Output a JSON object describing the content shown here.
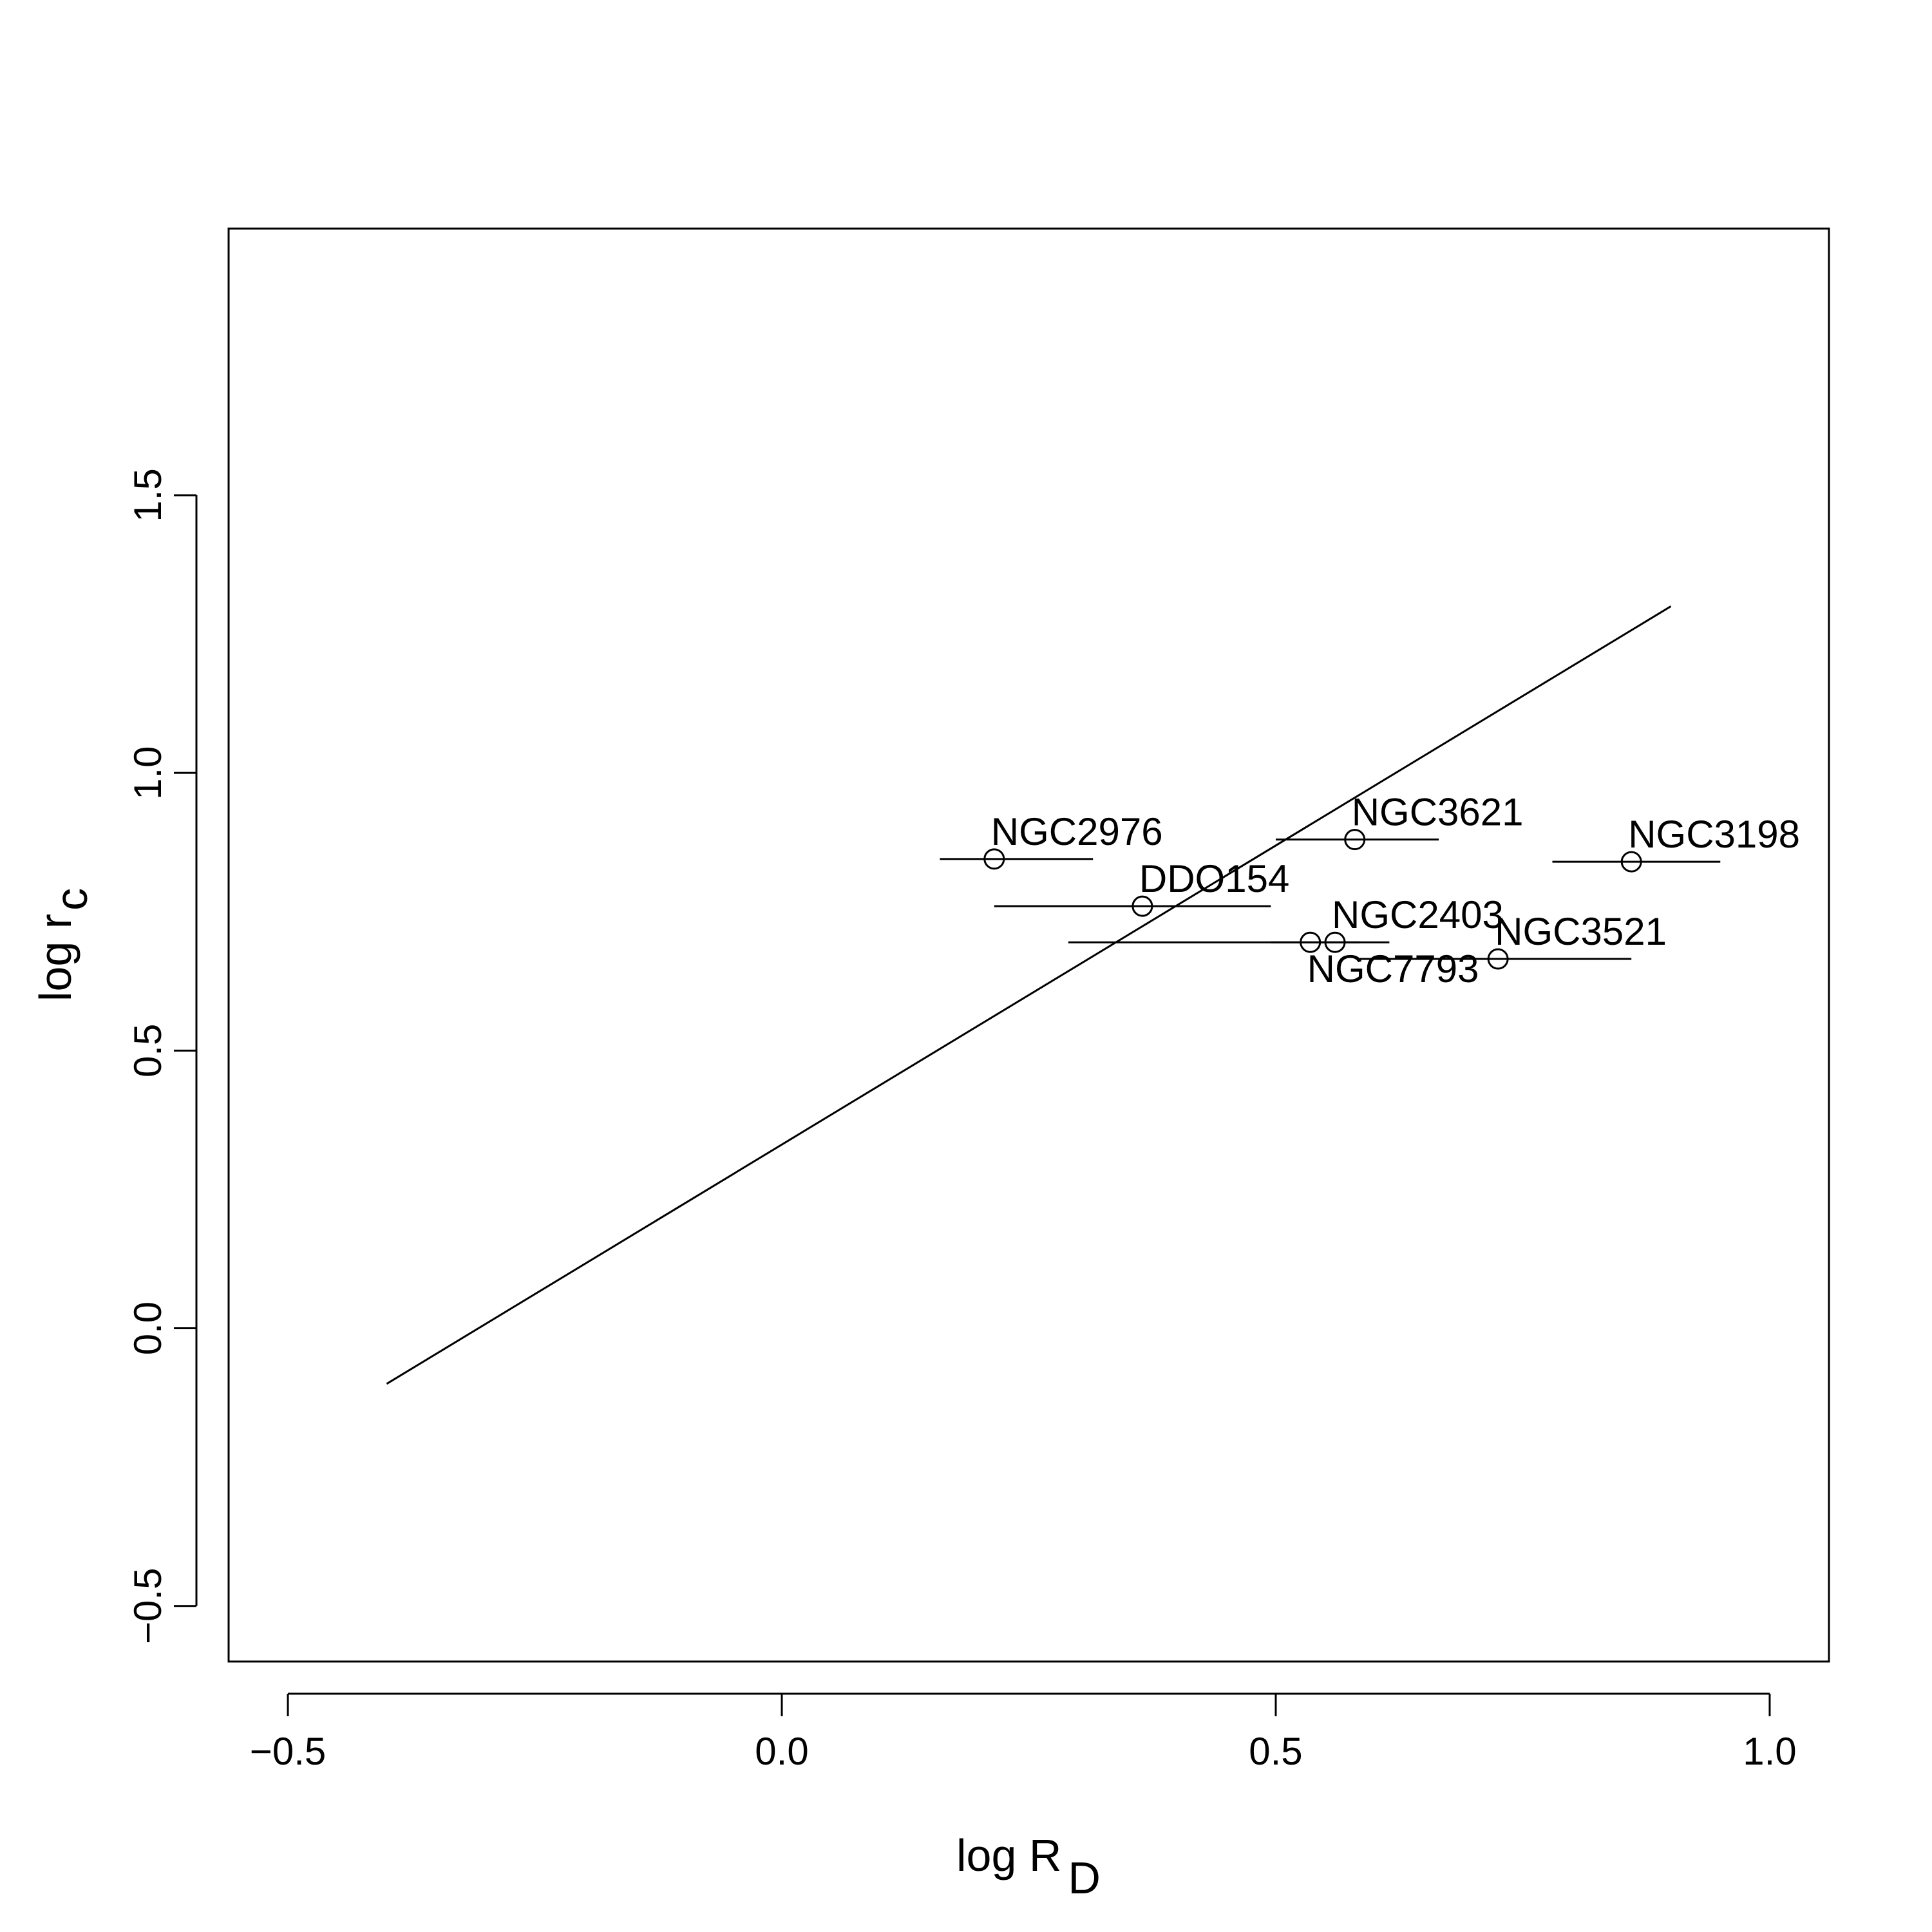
{
  "chart_data": {
    "type": "scatter",
    "title": "",
    "xlabel": "log R",
    "xlabel_sub": "D",
    "ylabel": "log r",
    "ylabel_sub": "c",
    "xlim": [
      -0.56,
      1.06
    ],
    "ylim": [
      -0.6,
      1.98
    ],
    "x_ticks": [
      -0.5,
      0.0,
      0.5,
      1.0
    ],
    "x_tick_labels": [
      "−0.5",
      "0.0",
      "0.5",
      "1.0"
    ],
    "y_ticks": [
      -0.5,
      0.0,
      0.5,
      1.0,
      1.5
    ],
    "y_tick_labels": [
      "−0.5",
      "0.0",
      "0.5",
      "1.0",
      "1.5"
    ],
    "grid": false,
    "points": [
      {
        "label": "NGC2976",
        "x": 0.215,
        "y": 0.845,
        "xerr_low": 0.16,
        "xerr_high": 0.315,
        "label_pos": "above-right"
      },
      {
        "label": "DDO154",
        "x": 0.365,
        "y": 0.76,
        "xerr_low": 0.215,
        "xerr_high": 0.495,
        "label_pos": "above-right"
      },
      {
        "label": "NGC3621",
        "x": 0.58,
        "y": 0.88,
        "xerr_low": 0.5,
        "xerr_high": 0.665,
        "label_pos": "above-right"
      },
      {
        "label": "NGC3198",
        "x": 0.86,
        "y": 0.84,
        "xerr_low": 0.78,
        "xerr_high": 0.95,
        "label_pos": "above-right"
      },
      {
        "label": "NGC2403",
        "x": 0.56,
        "y": 0.695,
        "xerr_low": 0.29,
        "xerr_high": 0.615,
        "label_pos": "above-right"
      },
      {
        "label": "NGC7793",
        "x": 0.535,
        "y": 0.695,
        "xerr_low": 0.495,
        "xerr_high": 0.585,
        "label_pos": "below-right"
      },
      {
        "label": "NGC3521",
        "x": 0.725,
        "y": 0.665,
        "xerr_low": 0.585,
        "xerr_high": 0.86,
        "label_pos": "above-right"
      }
    ],
    "fit_line": {
      "x": [
        -0.4,
        0.9
      ],
      "y": [
        -0.1,
        1.3
      ]
    }
  }
}
